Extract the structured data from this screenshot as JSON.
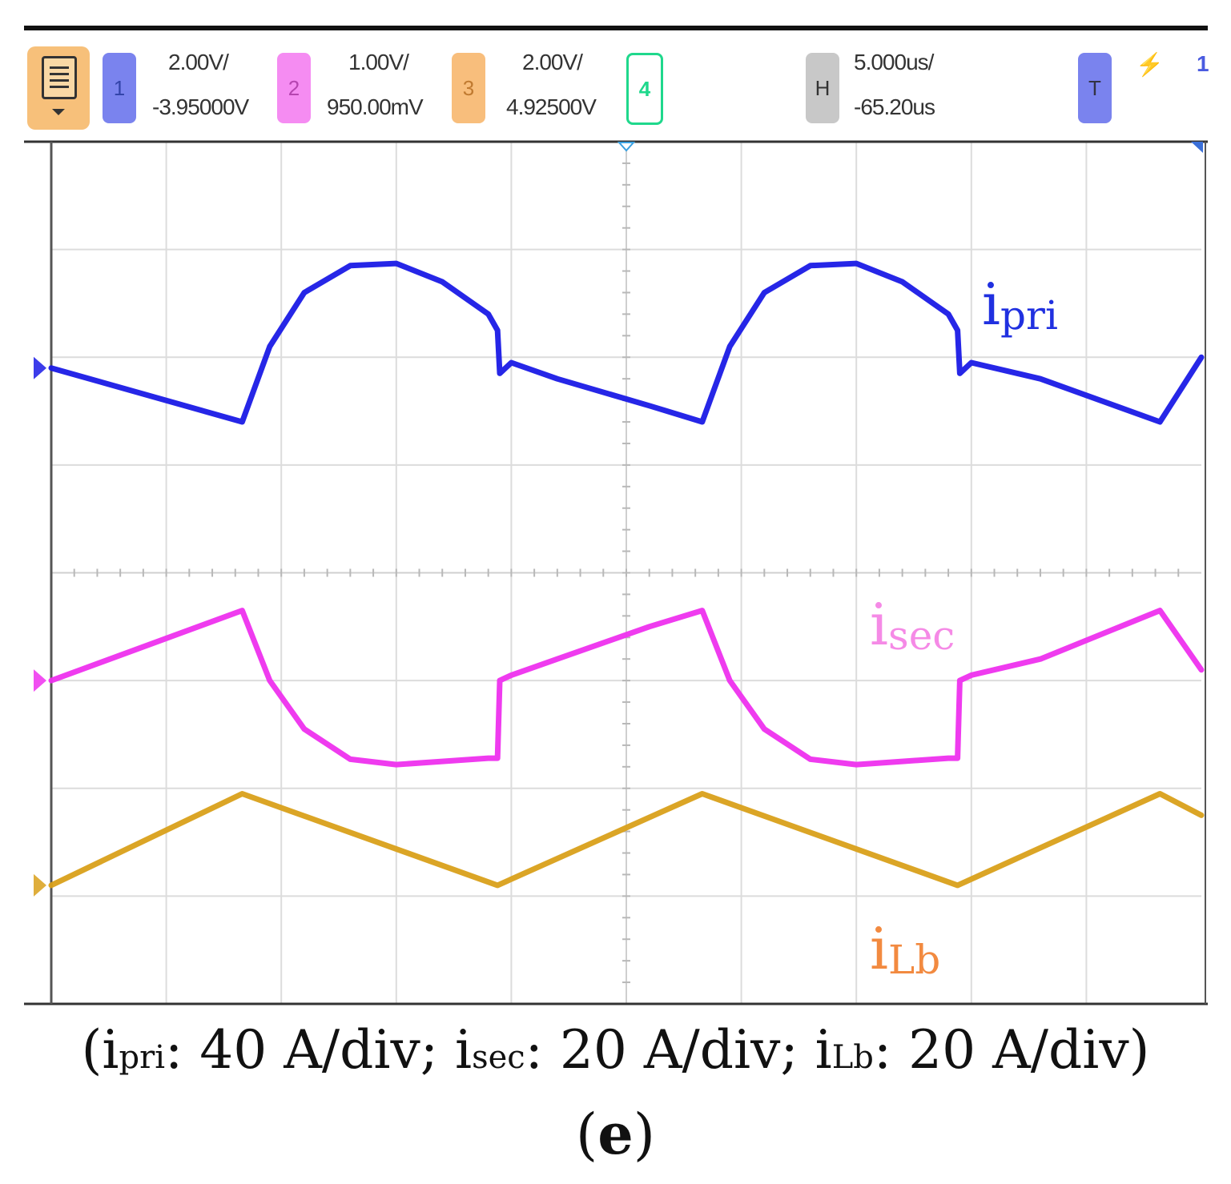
{
  "toolbar": {
    "channels": [
      {
        "id": "1",
        "scale": "2.00V/",
        "offset": "-3.95000V",
        "color": "#7a83ee"
      },
      {
        "id": "2",
        "scale": "1.00V/",
        "offset": "950.00mV",
        "color": "#f58cf2"
      },
      {
        "id": "3",
        "scale": "2.00V/",
        "offset": "4.92500V",
        "color": "#f8be7c"
      },
      {
        "id": "4",
        "color": "#1fd88c"
      }
    ],
    "horizontal": {
      "label": "H",
      "scale": "5.000us/",
      "delay": "-65.20us"
    },
    "trigger": {
      "label": "T",
      "symbol": "⚡",
      "extra": "1"
    }
  },
  "chart_data": {
    "type": "line",
    "title": "",
    "xlabel": "",
    "ylabel": "",
    "x_unit": "us",
    "time_per_div": 5,
    "x_divisions": 10,
    "y_divisions": 8,
    "xlim": [
      0,
      50
    ],
    "ylim": [
      -4,
      4
    ],
    "grid": true,
    "series": [
      {
        "name": "ipri",
        "label_main": "i",
        "label_sub": "pri",
        "color": "#1a1ae6",
        "label_color": "#2030e0",
        "x": [
          0,
          8.3,
          9.5,
          11,
          13,
          15,
          17,
          19,
          19.4,
          19.5,
          20,
          22,
          26,
          28.3,
          29.5,
          31,
          33,
          35,
          37,
          39,
          39.4,
          39.5,
          40,
          43,
          48.2,
          50
        ],
        "y": [
          1.9,
          1.4,
          2.1,
          2.6,
          2.85,
          2.87,
          2.7,
          2.4,
          2.25,
          1.85,
          1.95,
          1.8,
          1.55,
          1.4,
          2.1,
          2.6,
          2.85,
          2.87,
          2.7,
          2.4,
          2.25,
          1.85,
          1.95,
          1.8,
          1.4,
          2.0
        ]
      },
      {
        "name": "isec",
        "label_main": "i",
        "label_sub": "sec",
        "color": "#ee30ee",
        "label_color": "#f58ae6",
        "x": [
          0,
          8.3,
          9.5,
          11,
          13,
          15,
          17,
          19,
          19.4,
          19.5,
          20,
          22,
          26,
          28.3,
          29.5,
          31,
          33,
          35,
          37,
          39,
          39.4,
          39.5,
          40,
          43,
          48.2,
          50
        ],
        "y": [
          -1.0,
          -0.35,
          -1.0,
          -1.45,
          -1.73,
          -1.78,
          -1.75,
          -1.72,
          -1.72,
          -1.0,
          -0.95,
          -0.8,
          -0.5,
          -0.35,
          -1.0,
          -1.45,
          -1.73,
          -1.78,
          -1.75,
          -1.72,
          -1.72,
          -1.0,
          -0.95,
          -0.8,
          -0.35,
          -0.9
        ]
      },
      {
        "name": "iLb",
        "label_main": "i",
        "label_sub": "Lb",
        "color": "#d9a01a",
        "label_color": "#f28a40",
        "x": [
          0,
          8.3,
          19.4,
          28.3,
          39.4,
          48.2,
          50
        ],
        "y": [
          -2.9,
          -2.05,
          -2.9,
          -2.05,
          -2.9,
          -2.05,
          -2.25
        ]
      }
    ],
    "caption": {
      "open": "(",
      "items": [
        {
          "main": "i",
          "sub": "pri",
          "text": ": 40 A/div; "
        },
        {
          "main": "i",
          "sub": "sec",
          "text": ": 20 A/div; "
        },
        {
          "main": "i",
          "sub": "Lb",
          "text": ": 20 A/div"
        }
      ],
      "close": ")"
    },
    "panel_label": "e"
  }
}
